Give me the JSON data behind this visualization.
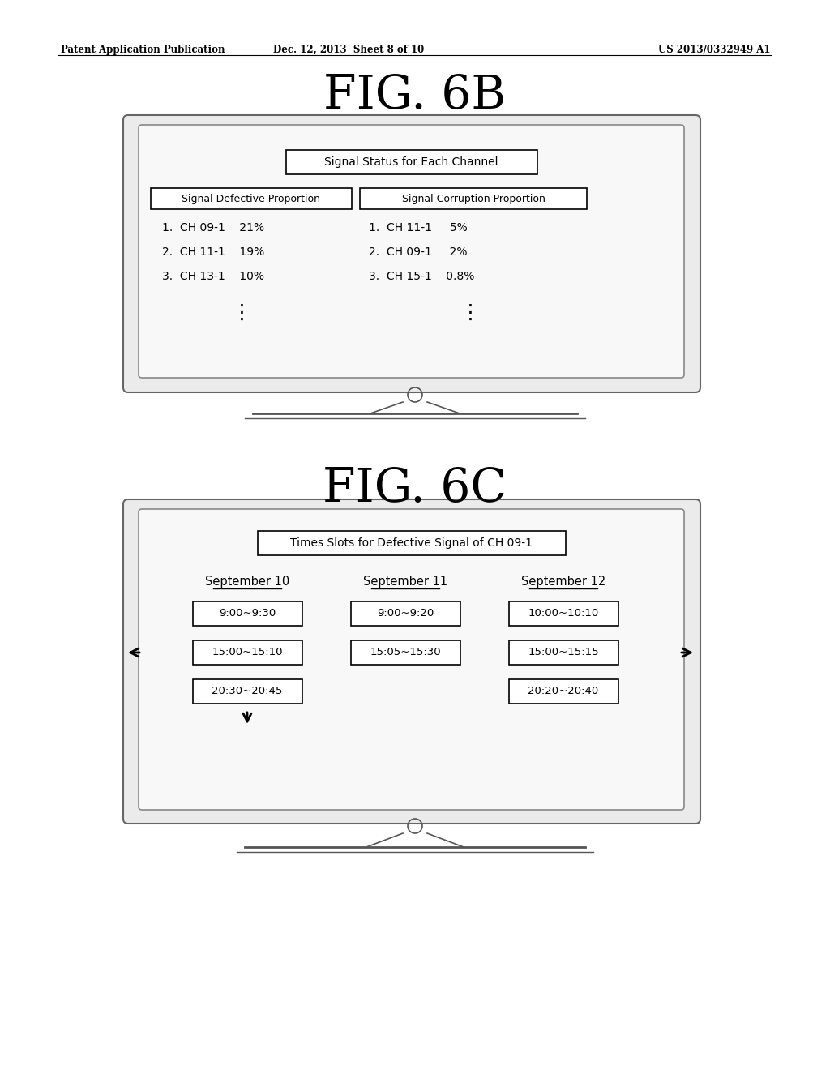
{
  "header_left": "Patent Application Publication",
  "header_mid": "Dec. 12, 2013  Sheet 8 of 10",
  "header_right": "US 2013/0332949 A1",
  "fig6b_title": "FIG. 6B",
  "fig6c_title": "FIG. 6C",
  "fig6b_screen_title": "Signal Status for Each Channel",
  "fig6b_col1_header": "Signal Defective Proportion",
  "fig6b_col2_header": "Signal Corruption Proportion",
  "fig6b_col1_items": [
    "1.  CH 09-1    21%",
    "2.  CH 11-1    19%",
    "3.  CH 13-1    10%"
  ],
  "fig6b_col2_items": [
    "1.  CH 11-1     5%",
    "2.  CH 09-1     2%",
    "3.  CH 15-1    0.8%"
  ],
  "fig6c_screen_title": "Times Slots for Defective Signal of CH 09-1",
  "fig6c_col_headers": [
    "September 10",
    "September 11",
    "September 12"
  ],
  "fig6c_slots": [
    [
      "9:00~9:30",
      "9:00~9:20",
      "10:00~10:10"
    ],
    [
      "15:00~15:10",
      "15:05~15:30",
      "15:00~15:15"
    ],
    [
      "20:30~20:45",
      "",
      "20:20~20:40"
    ]
  ],
  "background_color": "#ffffff"
}
